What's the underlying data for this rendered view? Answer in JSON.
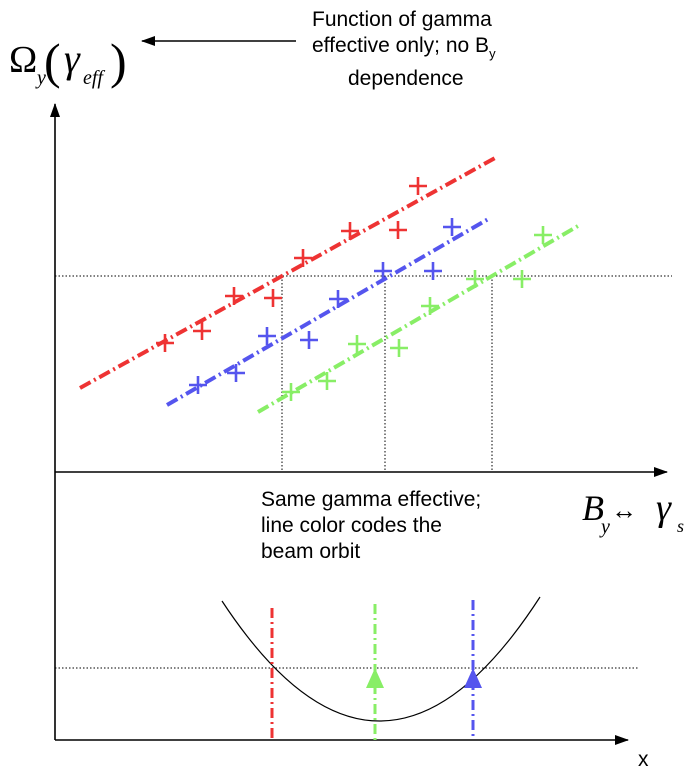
{
  "top_note": {
    "line1": "Function of gamma",
    "line2_prefix": "effective only; no B",
    "line2_sub": "y",
    "line3": "dependence"
  },
  "y_axis_label": {
    "omega": "Ω",
    "omega_sub": "y",
    "gamma": "γ",
    "gamma_sub": "eff"
  },
  "x_axis_label": {
    "b": "B",
    "b_sub": "y",
    "arrow": "↔",
    "gamma": "γ",
    "gamma_sub": "s"
  },
  "middle_note": {
    "line1": "Same gamma effective;",
    "line2": "line color codes the",
    "line3": "beam orbit"
  },
  "bottom_axis_label": "x",
  "colors": {
    "red": "#ee3333",
    "blue": "#5555ee",
    "green": "#88ee66",
    "axis": "#000000"
  }
}
